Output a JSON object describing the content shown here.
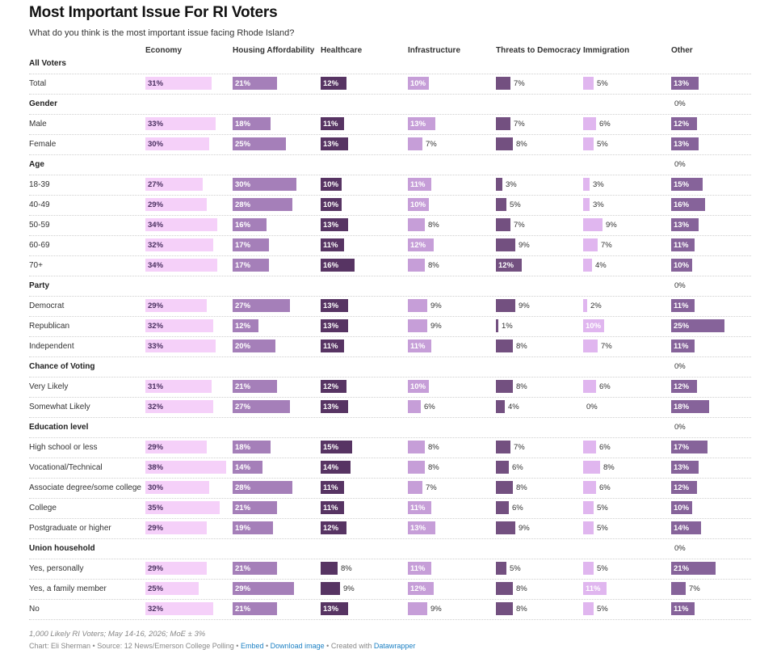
{
  "title": "Most Important Issue For RI Voters",
  "subtitle": "What do you think is the most important issue facing Rhode Island?",
  "footnote": "1,000 Likely RI Voters; May 14-16, 2026; MoE ± 3%",
  "credit": {
    "chart": "Chart: Eli Sherman",
    "sep": " • ",
    "source": "Source: 12 News/Emerson College Polling",
    "embed": "Embed",
    "download": "Download image",
    "created": "Created with ",
    "tool": "Datawrapper"
  },
  "colors": {
    "Economy": "#f5d0f9",
    "Housing Affordability": "#a57fb9",
    "Healthcare": "#573463",
    "Infrastructure": "#c69ed8",
    "Threats to Democracy": "#735080",
    "Immigration": "#e0b6ef",
    "Other": "#86639a"
  },
  "chart_data": {
    "type": "table",
    "columns": [
      "Economy",
      "Housing Affordability",
      "Healthcare",
      "Infrastructure",
      "Threats to Democracy",
      "Immigration",
      "Other"
    ],
    "unit": "%",
    "rows": [
      {
        "kind": "group",
        "label": "All Voters",
        "values": null
      },
      {
        "kind": "row",
        "label": "Total",
        "values": [
          31,
          21,
          12,
          10,
          7,
          5,
          13
        ]
      },
      {
        "kind": "group",
        "label": "Gender",
        "values": [
          null,
          null,
          null,
          null,
          null,
          null,
          0
        ]
      },
      {
        "kind": "row",
        "label": "Male",
        "values": [
          33,
          18,
          11,
          13,
          7,
          6,
          12
        ]
      },
      {
        "kind": "row",
        "label": "Female",
        "values": [
          30,
          25,
          13,
          7,
          8,
          5,
          13
        ]
      },
      {
        "kind": "group",
        "label": "Age",
        "values": [
          null,
          null,
          null,
          null,
          null,
          null,
          0
        ]
      },
      {
        "kind": "row",
        "label": "18-39",
        "values": [
          27,
          30,
          10,
          11,
          3,
          3,
          15
        ]
      },
      {
        "kind": "row",
        "label": "40-49",
        "values": [
          29,
          28,
          10,
          10,
          5,
          3,
          16
        ]
      },
      {
        "kind": "row",
        "label": "50-59",
        "values": [
          34,
          16,
          13,
          8,
          7,
          9,
          13
        ]
      },
      {
        "kind": "row",
        "label": "60-69",
        "values": [
          32,
          17,
          11,
          12,
          9,
          7,
          11
        ]
      },
      {
        "kind": "row",
        "label": "70+",
        "values": [
          34,
          17,
          16,
          8,
          12,
          4,
          10
        ]
      },
      {
        "kind": "group",
        "label": "Party",
        "values": [
          null,
          null,
          null,
          null,
          null,
          null,
          0
        ]
      },
      {
        "kind": "row",
        "label": "Democrat",
        "values": [
          29,
          27,
          13,
          9,
          9,
          2,
          11
        ]
      },
      {
        "kind": "row",
        "label": "Republican",
        "values": [
          32,
          12,
          13,
          9,
          1,
          10,
          25
        ]
      },
      {
        "kind": "row",
        "label": "Independent",
        "values": [
          33,
          20,
          11,
          11,
          8,
          7,
          11
        ]
      },
      {
        "kind": "group",
        "label": "Chance of Voting",
        "values": [
          null,
          null,
          null,
          null,
          null,
          null,
          0
        ]
      },
      {
        "kind": "row",
        "label": "Very Likely",
        "values": [
          31,
          21,
          12,
          10,
          8,
          6,
          12
        ]
      },
      {
        "kind": "row",
        "label": "Somewhat Likely",
        "values": [
          32,
          27,
          13,
          6,
          4,
          0,
          18
        ]
      },
      {
        "kind": "group",
        "label": "Education level",
        "values": [
          null,
          null,
          null,
          null,
          null,
          null,
          0
        ]
      },
      {
        "kind": "row",
        "label": "High school or less",
        "values": [
          29,
          18,
          15,
          8,
          7,
          6,
          17
        ]
      },
      {
        "kind": "row",
        "label": "Vocational/Technical",
        "values": [
          38,
          14,
          14,
          8,
          6,
          8,
          13
        ]
      },
      {
        "kind": "row",
        "label": "Associate degree/some college",
        "values": [
          30,
          28,
          11,
          7,
          8,
          6,
          12
        ]
      },
      {
        "kind": "row",
        "label": "College",
        "values": [
          35,
          21,
          11,
          11,
          6,
          5,
          10
        ]
      },
      {
        "kind": "row",
        "label": "Postgraduate or higher",
        "values": [
          29,
          19,
          12,
          13,
          9,
          5,
          14
        ]
      },
      {
        "kind": "group",
        "label": "Union household",
        "values": [
          null,
          null,
          null,
          null,
          null,
          null,
          0
        ]
      },
      {
        "kind": "row",
        "label": "Yes, personally",
        "values": [
          29,
          21,
          8,
          11,
          5,
          5,
          21
        ]
      },
      {
        "kind": "row",
        "label": "Yes, a family member",
        "values": [
          25,
          29,
          9,
          12,
          8,
          11,
          7
        ]
      },
      {
        "kind": "row",
        "label": "No",
        "values": [
          32,
          21,
          13,
          9,
          8,
          5,
          11
        ]
      }
    ]
  }
}
